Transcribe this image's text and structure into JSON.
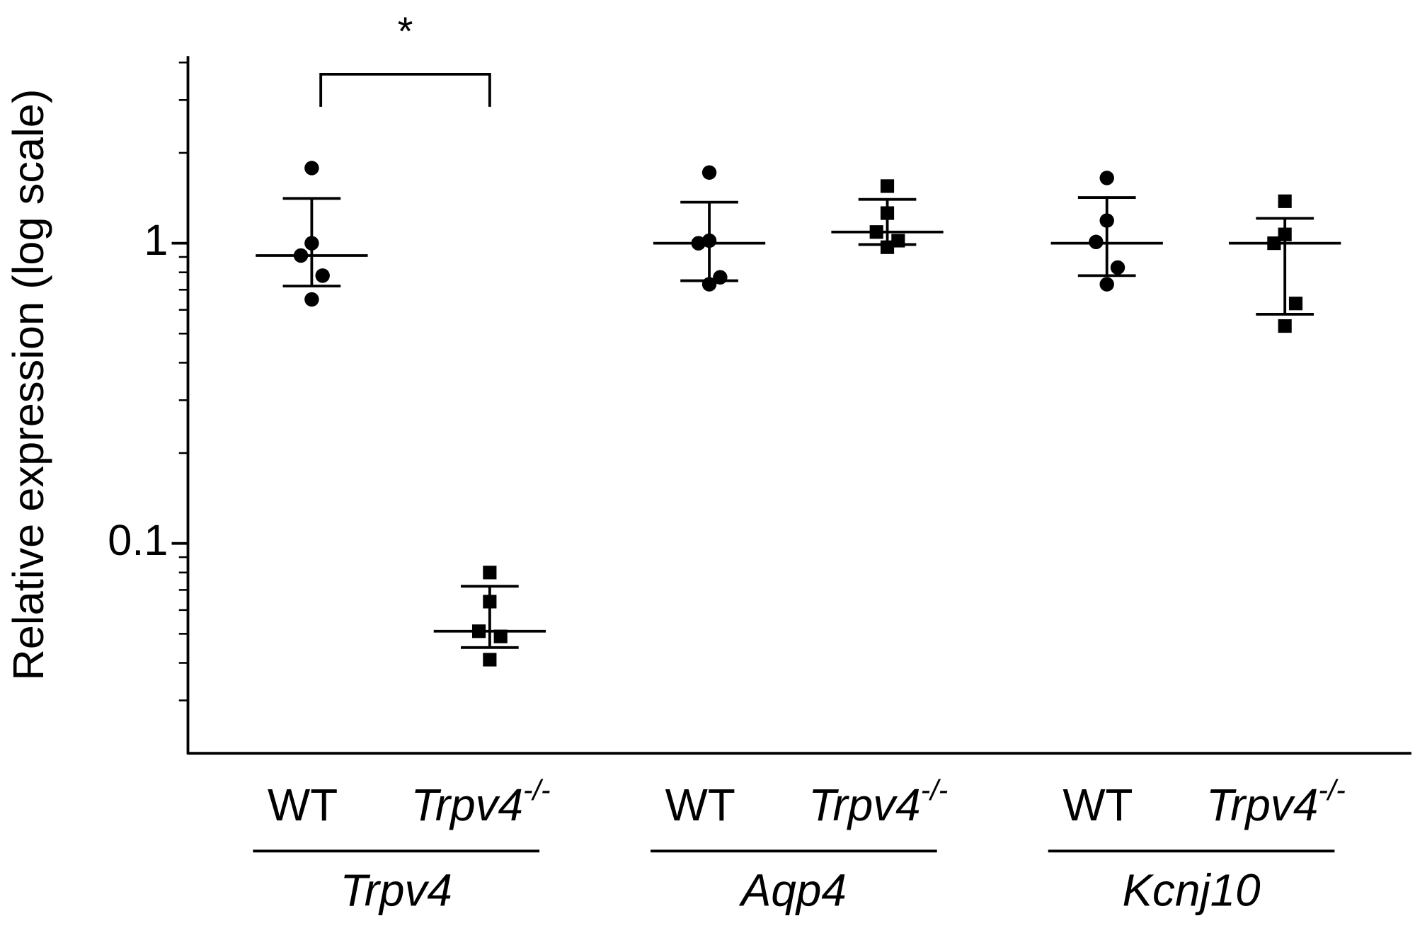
{
  "chart_data": {
    "type": "dot",
    "y_label": "Relative expression (log scale)",
    "y_scale": "log",
    "ylim": [
      0.02,
      4.2
    ],
    "yticks": [
      0.1,
      1
    ],
    "minor_yticks": [
      0.03,
      0.04,
      0.05,
      0.06,
      0.07,
      0.08,
      0.09,
      0.2,
      0.3,
      0.4,
      0.5,
      0.6,
      0.7,
      0.8,
      0.9,
      2,
      3,
      4
    ],
    "color": "#000000",
    "groups": [
      {
        "gene": "Trpv4",
        "samples": [
          {
            "label": "WT",
            "marker": "circle",
            "values": [
              1.78,
              1.0,
              0.91,
              0.78,
              0.65
            ],
            "mean": 0.91,
            "sd_lower": 0.72,
            "sd_upper": 1.41
          },
          {
            "label": "Trpv4",
            "label_superscript": "-/-",
            "marker": "square",
            "values": [
              0.08,
              0.064,
              0.051,
              0.049,
              0.041
            ],
            "mean": 0.051,
            "sd_lower": 0.045,
            "sd_upper": 0.072
          }
        ]
      },
      {
        "gene": "Aqp4",
        "samples": [
          {
            "label": "WT",
            "marker": "circle",
            "values": [
              1.72,
              1.02,
              1.0,
              0.77,
              0.73
            ],
            "mean": 1.0,
            "sd_lower": 0.75,
            "sd_upper": 1.37
          },
          {
            "label": "Trpv4",
            "label_superscript": "-/-",
            "marker": "square",
            "values": [
              1.55,
              1.26,
              1.09,
              1.02,
              0.97
            ],
            "mean": 1.09,
            "sd_lower": 0.99,
            "sd_upper": 1.4
          }
        ]
      },
      {
        "gene": "Kcnj10",
        "samples": [
          {
            "label": "WT",
            "marker": "circle",
            "values": [
              1.65,
              1.19,
              1.01,
              0.83,
              0.73
            ],
            "mean": 1.0,
            "sd_lower": 0.78,
            "sd_upper": 1.42
          },
          {
            "label": "Trpv4",
            "label_superscript": "-/-",
            "marker": "square",
            "values": [
              1.38,
              1.07,
              1.0,
              0.63,
              0.53
            ],
            "mean": 1.0,
            "sd_lower": 0.58,
            "sd_upper": 1.21
          }
        ]
      }
    ],
    "significance": [
      {
        "text": "*",
        "from": {
          "group": 0,
          "sample": 0
        },
        "to": {
          "group": 0,
          "sample": 1
        }
      }
    ]
  }
}
